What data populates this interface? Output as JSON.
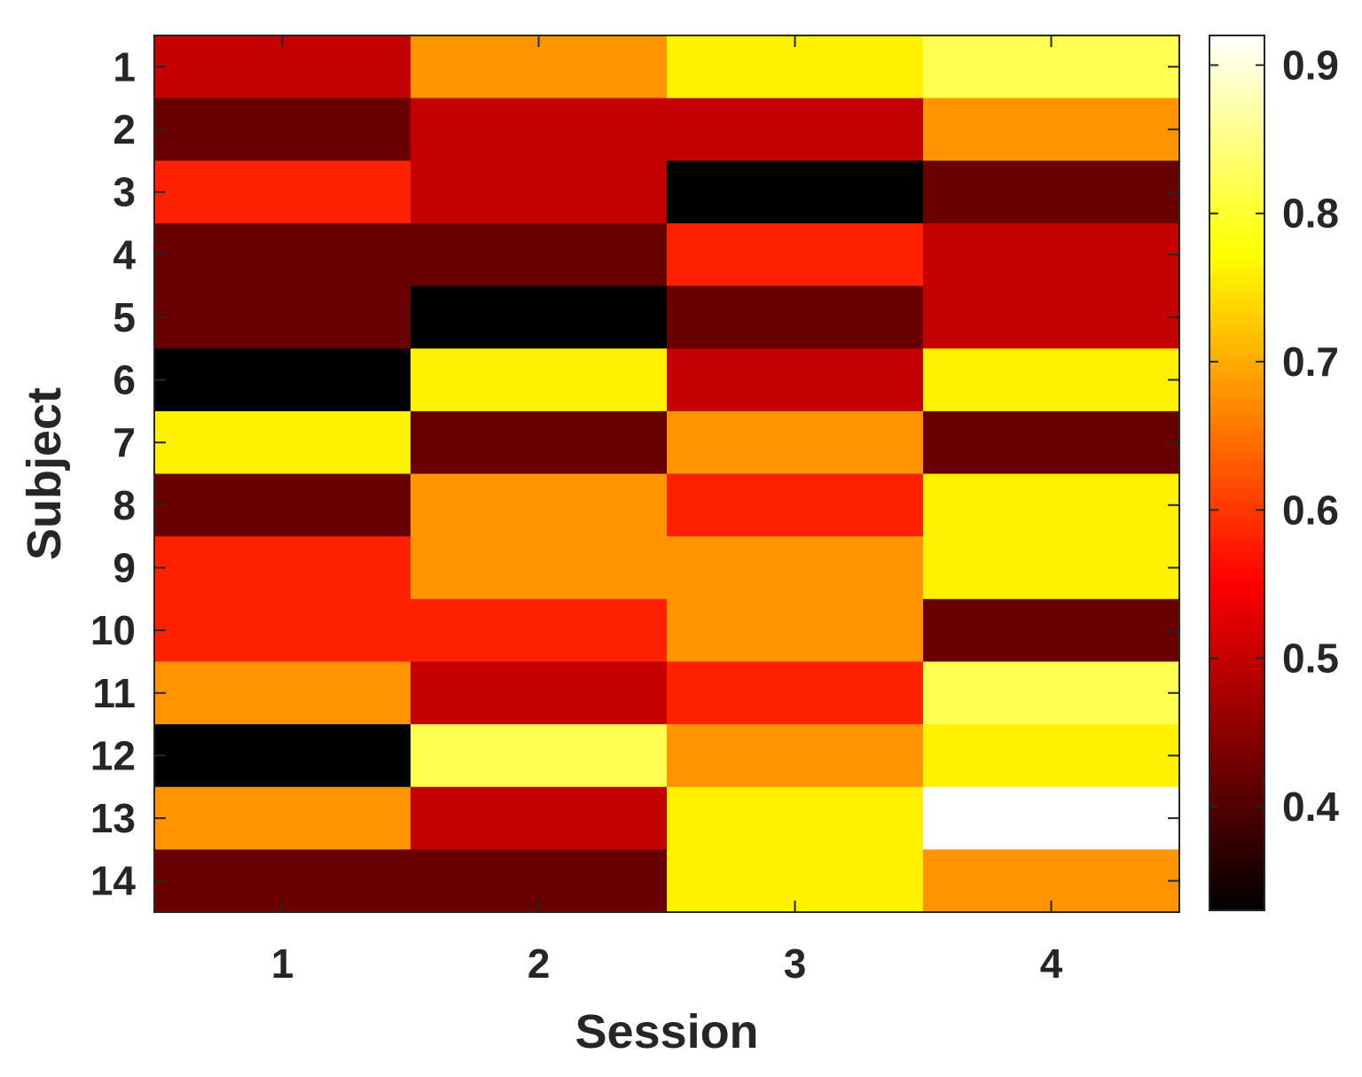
{
  "chart_data": {
    "type": "heatmap",
    "title": "",
    "xlabel": "Session",
    "ylabel": "Subject",
    "x_categories": [
      "1",
      "2",
      "3",
      "4"
    ],
    "y_categories": [
      "1",
      "2",
      "3",
      "4",
      "5",
      "6",
      "7",
      "8",
      "9",
      "10",
      "11",
      "12",
      "13",
      "14"
    ],
    "values": [
      [
        0.5,
        0.68,
        0.76,
        0.82
      ],
      [
        0.42,
        0.5,
        0.5,
        0.68
      ],
      [
        0.58,
        0.5,
        0.33,
        0.42
      ],
      [
        0.42,
        0.42,
        0.58,
        0.5
      ],
      [
        0.42,
        0.33,
        0.42,
        0.5
      ],
      [
        0.33,
        0.76,
        0.5,
        0.76
      ],
      [
        0.76,
        0.42,
        0.68,
        0.42
      ],
      [
        0.42,
        0.68,
        0.58,
        0.76
      ],
      [
        0.58,
        0.68,
        0.68,
        0.76
      ],
      [
        0.58,
        0.58,
        0.68,
        0.42
      ],
      [
        0.68,
        0.5,
        0.58,
        0.82
      ],
      [
        0.33,
        0.82,
        0.68,
        0.76
      ],
      [
        0.68,
        0.5,
        0.76,
        0.92
      ],
      [
        0.42,
        0.42,
        0.76,
        0.68
      ]
    ],
    "colormap": "hot",
    "colorbar": {
      "range": [
        0.33,
        0.92
      ],
      "ticks": [
        0.4,
        0.5,
        0.6,
        0.7,
        0.8,
        0.9
      ],
      "tick_labels": [
        "0.4",
        "0.5",
        "0.6",
        "0.7",
        "0.8",
        "0.9"
      ]
    }
  }
}
